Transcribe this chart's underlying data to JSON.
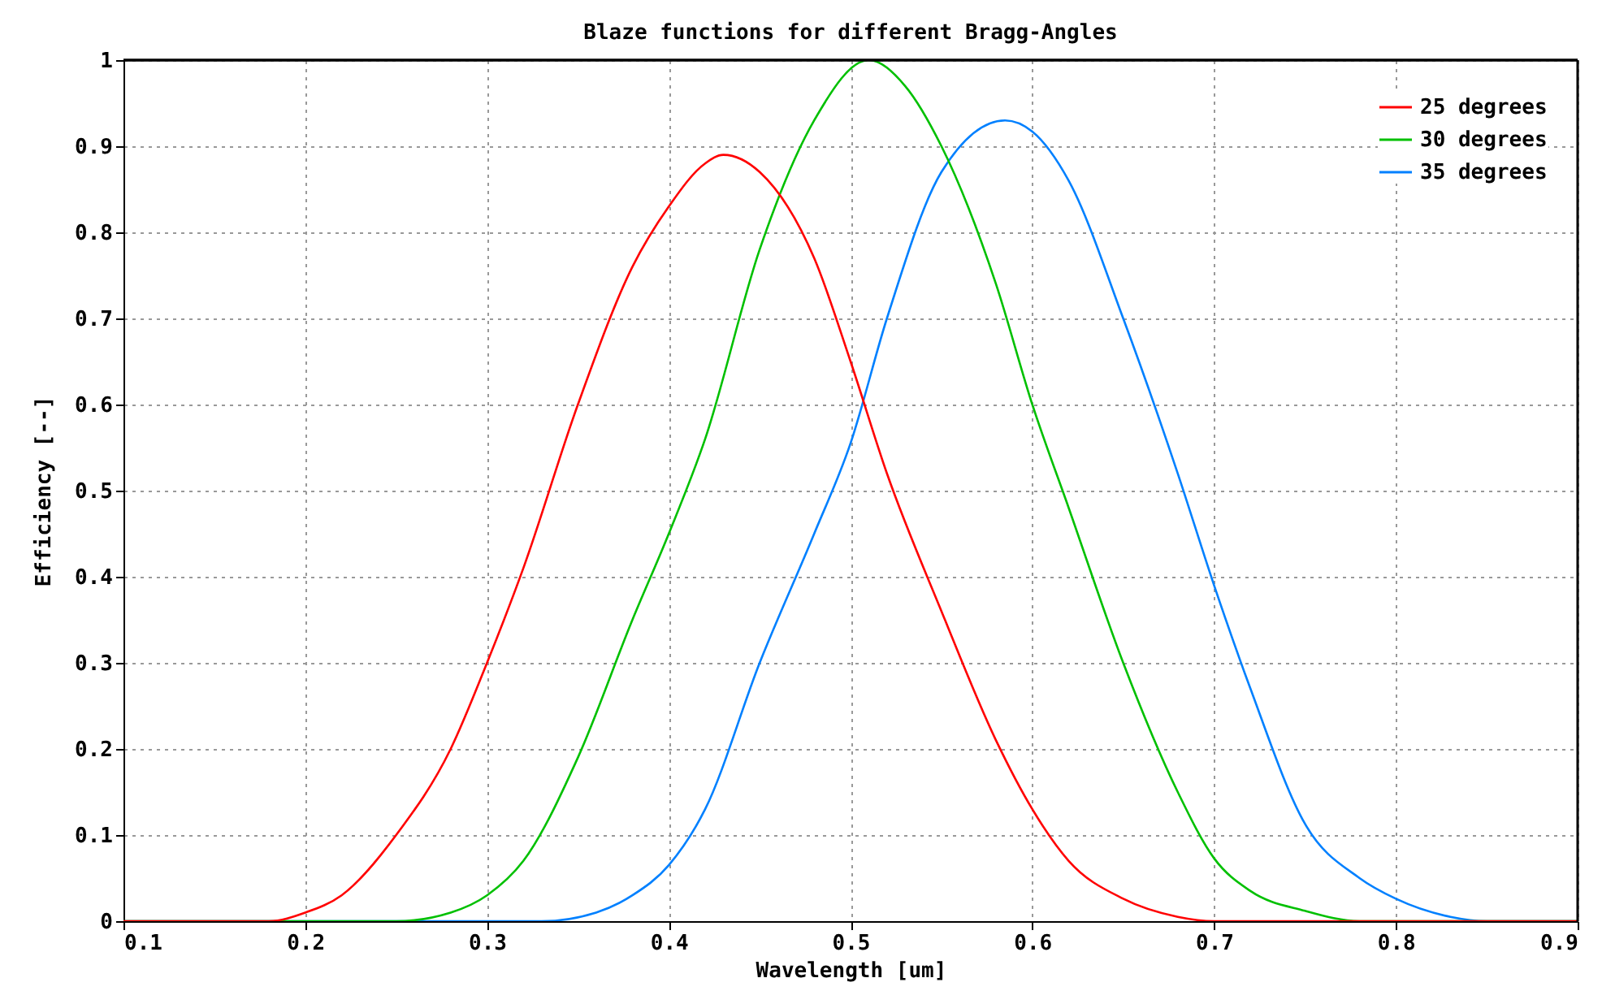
{
  "chart_data": {
    "type": "line",
    "title": "Blaze functions for different Bragg-Angles",
    "xlabel": "Wavelength [um]",
    "ylabel": "Efficiency [--]",
    "xlim": [
      0.1,
      0.9
    ],
    "ylim": [
      0,
      1
    ],
    "xticks": [
      0.1,
      0.2,
      0.3,
      0.4,
      0.5,
      0.6,
      0.7,
      0.8,
      0.9
    ],
    "yticks": [
      0,
      0.1,
      0.2,
      0.3,
      0.4,
      0.5,
      0.6,
      0.7,
      0.8,
      0.9,
      1
    ],
    "grid": true,
    "legend": "top right",
    "marker": "none",
    "line_style": "solid",
    "series": [
      {
        "name": "25 degrees",
        "color": "#ff0000",
        "x": [
          0.1,
          0.15,
          0.18,
          0.2,
          0.22,
          0.25,
          0.28,
          0.3,
          0.32,
          0.35,
          0.38,
          0.4,
          0.42,
          0.43,
          0.45,
          0.48,
          0.5,
          0.52,
          0.55,
          0.58,
          0.6,
          0.62,
          0.65,
          0.68,
          0.7,
          0.75,
          0.8,
          0.85,
          0.9
        ],
        "values": [
          0,
          0,
          0,
          0.01,
          0.03,
          0.1,
          0.2,
          0.3,
          0.41,
          0.6,
          0.76,
          0.83,
          0.88,
          0.89,
          0.87,
          0.77,
          0.65,
          0.52,
          0.36,
          0.21,
          0.13,
          0.07,
          0.026,
          0.005,
          0,
          0,
          0,
          0,
          0
        ]
      },
      {
        "name": "30 degrees",
        "color": "#00c000",
        "x": [
          0.1,
          0.25,
          0.28,
          0.3,
          0.32,
          0.35,
          0.38,
          0.4,
          0.42,
          0.45,
          0.48,
          0.51,
          0.53,
          0.55,
          0.58,
          0.6,
          0.62,
          0.65,
          0.68,
          0.7,
          0.72,
          0.75,
          0.78,
          0.9
        ],
        "values": [
          0,
          0,
          0.01,
          0.03,
          0.07,
          0.19,
          0.35,
          0.45,
          0.56,
          0.78,
          0.93,
          1.0,
          0.97,
          0.9,
          0.74,
          0.6,
          0.48,
          0.3,
          0.15,
          0.073,
          0.035,
          0.012,
          0,
          0
        ]
      },
      {
        "name": "35 degrees",
        "color": "#0080ff",
        "x": [
          0.1,
          0.33,
          0.36,
          0.38,
          0.4,
          0.42,
          0.45,
          0.48,
          0.5,
          0.52,
          0.55,
          0.585,
          0.6,
          0.62,
          0.65,
          0.68,
          0.7,
          0.72,
          0.75,
          0.78,
          0.8,
          0.83,
          0.85,
          0.9
        ],
        "values": [
          0,
          0,
          0.01,
          0.03,
          0.065,
          0.13,
          0.3,
          0.45,
          0.555,
          0.7,
          0.87,
          0.93,
          0.917,
          0.86,
          0.7,
          0.52,
          0.39,
          0.27,
          0.113,
          0.05,
          0.026,
          0.005,
          0,
          0
        ]
      }
    ]
  }
}
